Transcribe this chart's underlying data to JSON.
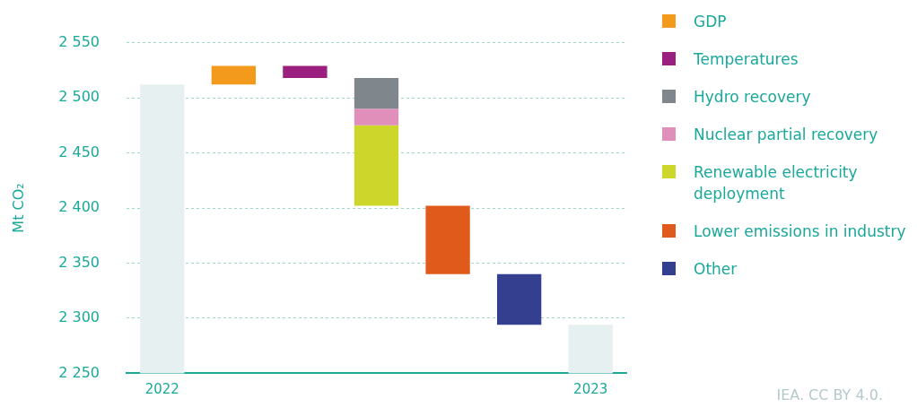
{
  "chart_data": {
    "type": "bar",
    "ylabel": "Mt CO₂",
    "categories": [
      "2022",
      null,
      null,
      null,
      null,
      null,
      "2023"
    ],
    "series": [
      {
        "color": "#e6f0f1",
        "values": [
          2512,
          null,
          null,
          null,
          null,
          null,
          2294
        ]
      },
      {
        "name": "GDP",
        "color": "#f39a1d",
        "values": [
          null,
          17,
          null,
          null,
          null,
          null,
          null
        ],
        "base": [
          null,
          2512,
          null,
          null,
          null,
          null,
          null
        ]
      },
      {
        "name": "Temperatures",
        "color": "#9b1f7e",
        "values": [
          null,
          null,
          -11,
          null,
          null,
          null,
          null
        ],
        "base": [
          null,
          null,
          2529,
          null,
          null,
          null,
          null
        ]
      },
      {
        "name": "Hydro recovery",
        "color": "#7f878c",
        "values": [
          null,
          null,
          null,
          -28,
          null,
          null,
          null
        ],
        "base": [
          null,
          null,
          null,
          2518,
          null,
          null,
          null
        ]
      },
      {
        "name": "Nuclear partial recovery",
        "color": "#e08fbb",
        "values": [
          null,
          null,
          null,
          -15,
          null,
          null,
          null
        ],
        "base": [
          null,
          null,
          null,
          2490,
          null,
          null,
          null
        ]
      },
      {
        "name": "Renewable electricity deployment",
        "color": "#cdd62a",
        "values": [
          null,
          null,
          null,
          -73,
          null,
          null,
          null
        ],
        "base": [
          null,
          null,
          null,
          2475,
          null,
          null,
          null
        ]
      },
      {
        "name": "Lower emissions in industry",
        "color": "#e05a1b",
        "values": [
          null,
          null,
          null,
          null,
          -62,
          null,
          null
        ],
        "base": [
          null,
          null,
          null,
          null,
          2402,
          null,
          null
        ]
      },
      {
        "name": "Other",
        "color": "#34408f",
        "values": [
          null,
          null,
          null,
          null,
          null,
          -46,
          null
        ],
        "base": [
          null,
          null,
          null,
          null,
          null,
          2340,
          null
        ]
      }
    ],
    "ylim": [
      2250,
      2550
    ],
    "yticks": [
      {
        "value": 2250,
        "label": "2 250"
      },
      {
        "value": 2300,
        "label": "2 300"
      },
      {
        "value": 2350,
        "label": "2 350"
      },
      {
        "value": 2400,
        "label": "2 400"
      },
      {
        "value": 2450,
        "label": "2 450"
      },
      {
        "value": 2500,
        "label": "2 500"
      },
      {
        "value": 2550,
        "label": "2 550"
      }
    ],
    "grid": "y",
    "legend": "right",
    "annotations": [
      "IEA. CC BY 4.0."
    ]
  }
}
